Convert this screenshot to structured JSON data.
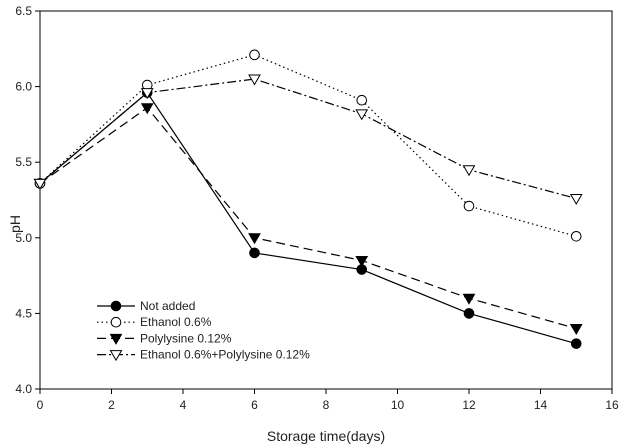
{
  "chart_data": {
    "type": "line",
    "xlabel": "Storage time(days)",
    "ylabel": "pH",
    "xlim": [
      0,
      16
    ],
    "ylim": [
      4.0,
      6.5
    ],
    "x_ticks": [
      "0",
      "2",
      "4",
      "6",
      "8",
      "10",
      "12",
      "14",
      "16"
    ],
    "y_ticks": [
      "4.0",
      "4.5",
      "5.0",
      "5.5",
      "6.0",
      "6.5"
    ],
    "grid": false,
    "legend_position": "bottom-left",
    "x": [
      0,
      3,
      6,
      9,
      12,
      15
    ],
    "series": [
      {
        "name": "Not added",
        "marker": "filled-circle",
        "line": "solid",
        "values": [
          5.36,
          5.96,
          4.9,
          4.79,
          4.5,
          4.3
        ]
      },
      {
        "name": "Ethanol 0.6%",
        "marker": "open-circle",
        "line": "dotted",
        "values": [
          5.36,
          6.01,
          6.21,
          5.91,
          5.21,
          5.01
        ]
      },
      {
        "name": "Polylysine 0.12%",
        "marker": "filled-triangle-down",
        "line": "dashed",
        "values": [
          5.36,
          5.86,
          5.0,
          4.85,
          4.6,
          4.4
        ]
      },
      {
        "name": "Ethanol 0.6%+Polylysine 0.12%",
        "marker": "open-triangle-down",
        "line": "dash-dot",
        "values": [
          5.36,
          5.96,
          6.05,
          5.82,
          5.45,
          5.26
        ]
      }
    ],
    "colors": {
      "line": "#000000",
      "marker_fill": "#000000",
      "open_fill": "#ffffff"
    }
  }
}
